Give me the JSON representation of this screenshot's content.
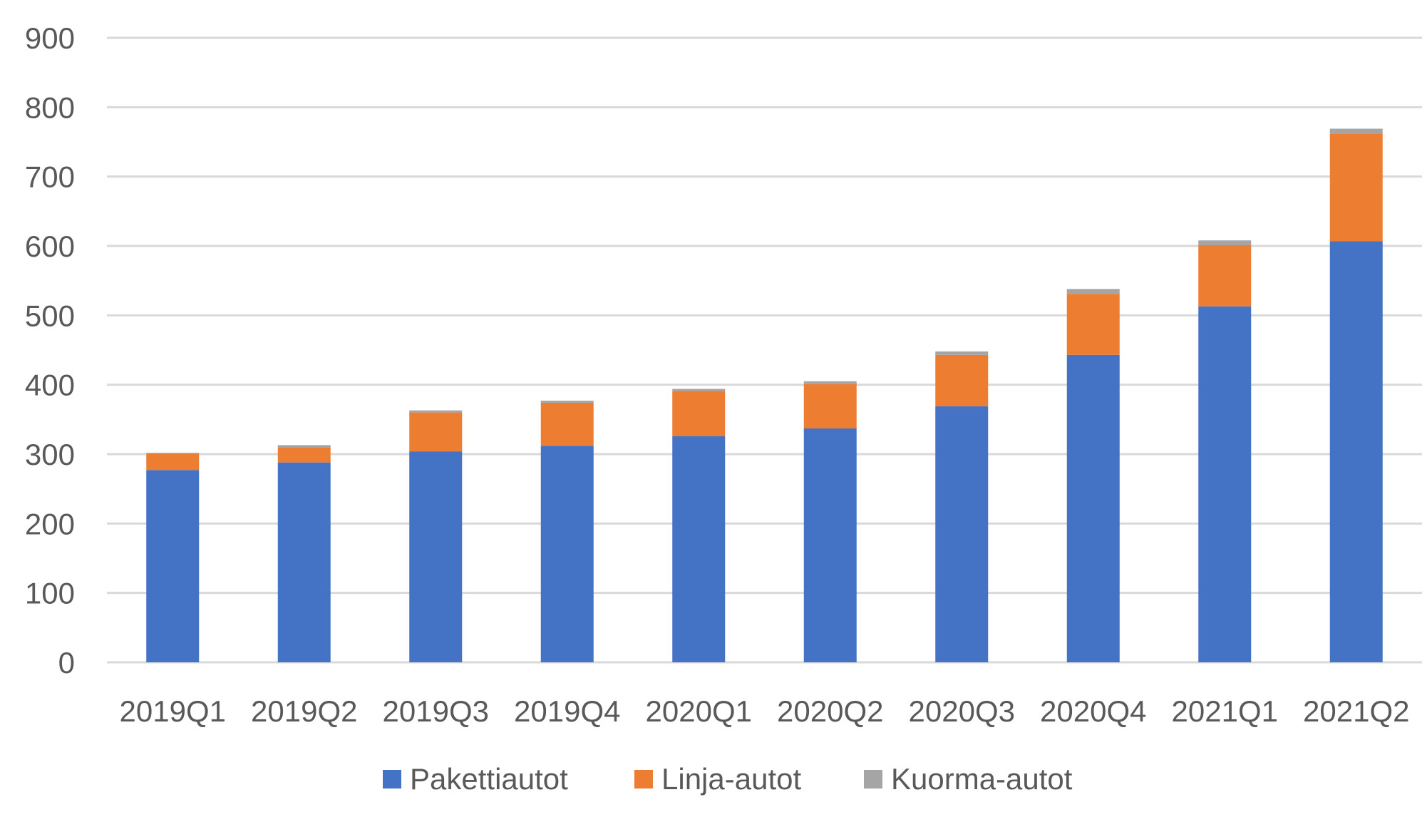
{
  "chart_data": {
    "type": "bar",
    "stacked": true,
    "title": "",
    "xlabel": "",
    "ylabel": "",
    "ylim": [
      0,
      900
    ],
    "yticks": [
      0,
      100,
      200,
      300,
      400,
      500,
      600,
      700,
      800,
      900
    ],
    "grid": true,
    "legend_position": "bottom",
    "categories": [
      "2019Q1",
      "2019Q2",
      "2019Q3",
      "2019Q4",
      "2020Q1",
      "2020Q2",
      "2020Q3",
      "2020Q4",
      "2021Q1",
      "2021Q2"
    ],
    "series": [
      {
        "name": "Pakettiautot",
        "color": "#4472C4",
        "values": [
          277,
          288,
          304,
          312,
          326,
          337,
          369,
          443,
          513,
          607
        ]
      },
      {
        "name": "Linja-autot",
        "color": "#ED7D31",
        "values": [
          23,
          22,
          56,
          62,
          65,
          64,
          74,
          88,
          88,
          155
        ]
      },
      {
        "name": "Kuorma-autot",
        "color": "#A5A5A5",
        "values": [
          2,
          3,
          3,
          3,
          3,
          4,
          5,
          7,
          7,
          7
        ]
      }
    ]
  },
  "colors": {
    "grid": "#D9D9D9",
    "text": "#595959"
  }
}
